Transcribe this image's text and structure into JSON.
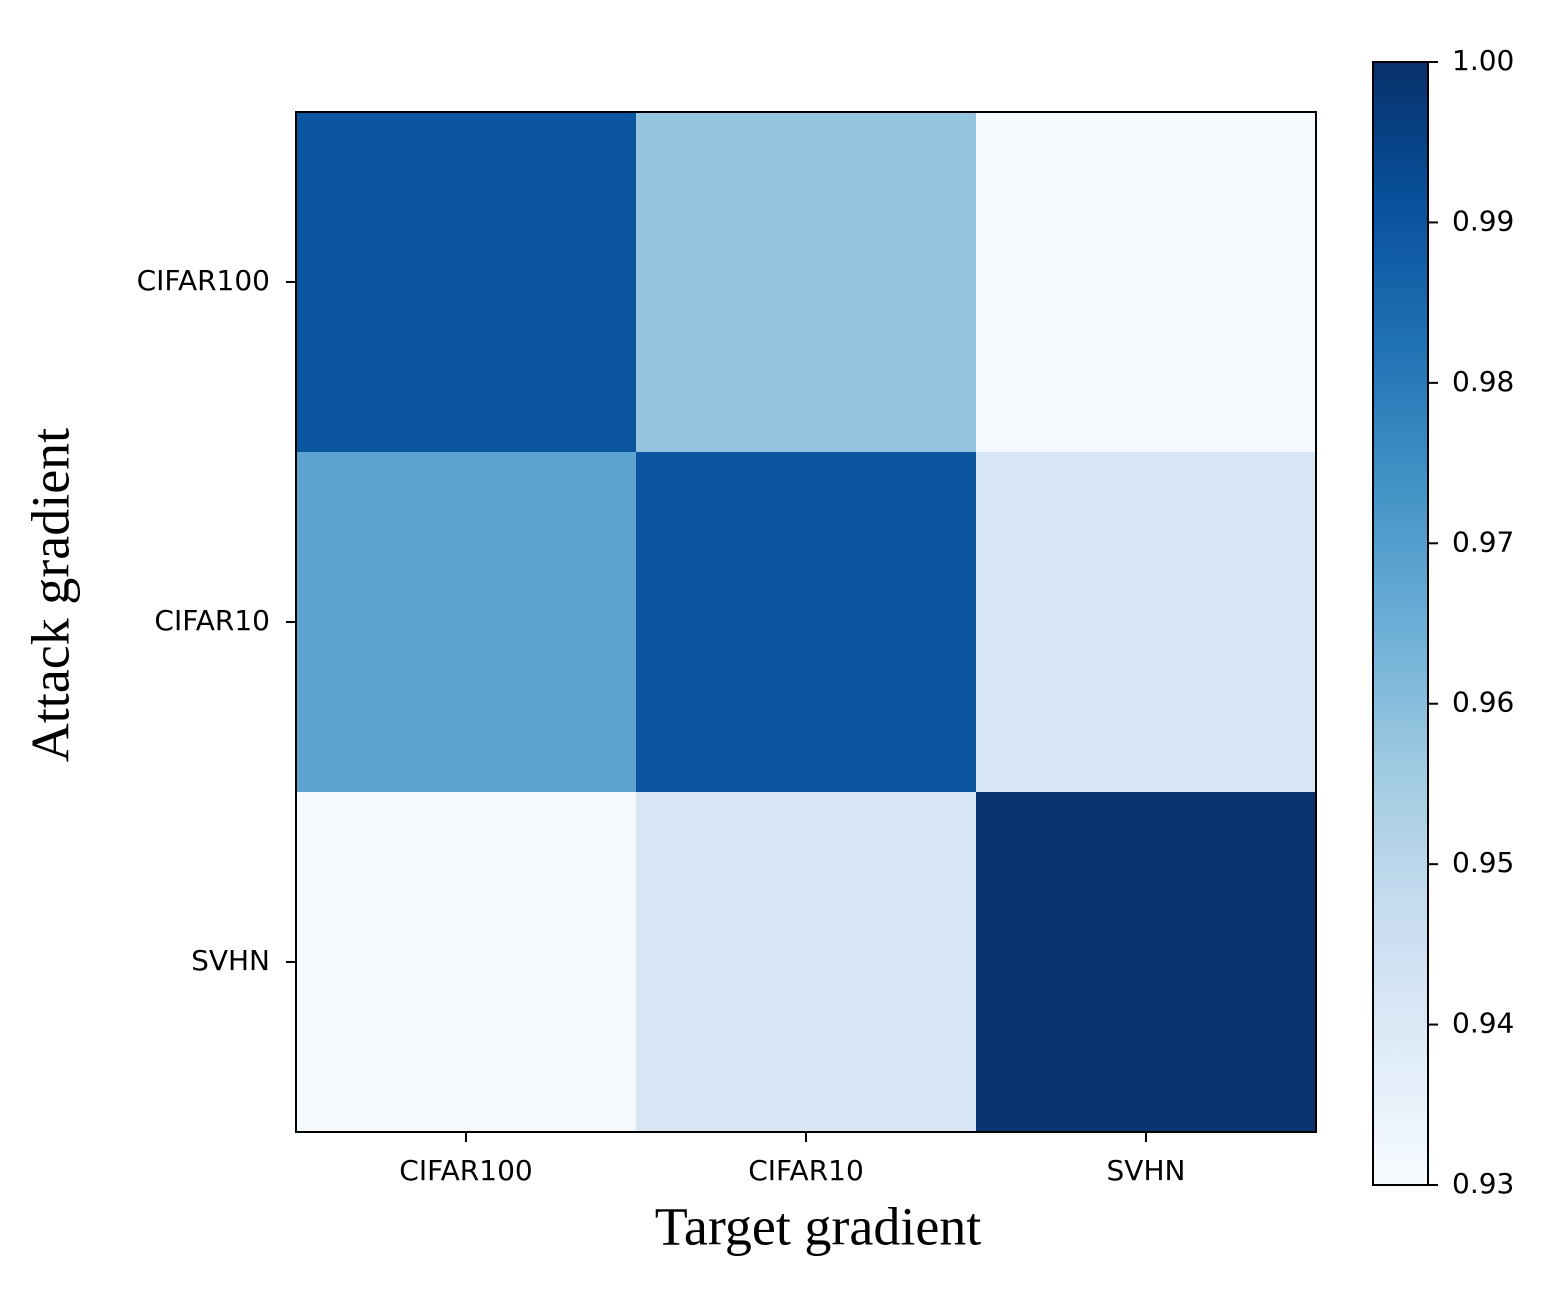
{
  "chart_data": {
    "type": "heatmap",
    "xlabel": "Target gradient",
    "ylabel": "Attack gradient",
    "categories": [
      "CIFAR100",
      "CIFAR10",
      "SVHN"
    ],
    "y_categories": [
      "CIFAR100",
      "CIFAR10",
      "SVHN"
    ],
    "values": [
      [
        0.99,
        0.958,
        0.931
      ],
      [
        0.968,
        0.99,
        0.941
      ],
      [
        0.931,
        0.941,
        0.999
      ]
    ],
    "colormap": "Blues",
    "clim": [
      0.93,
      1.0
    ],
    "cticks": [
      0.93,
      0.94,
      0.95,
      0.96,
      0.97,
      0.98,
      0.99,
      {
        "value": 1.0,
        "label": "1.00"
      }
    ]
  }
}
